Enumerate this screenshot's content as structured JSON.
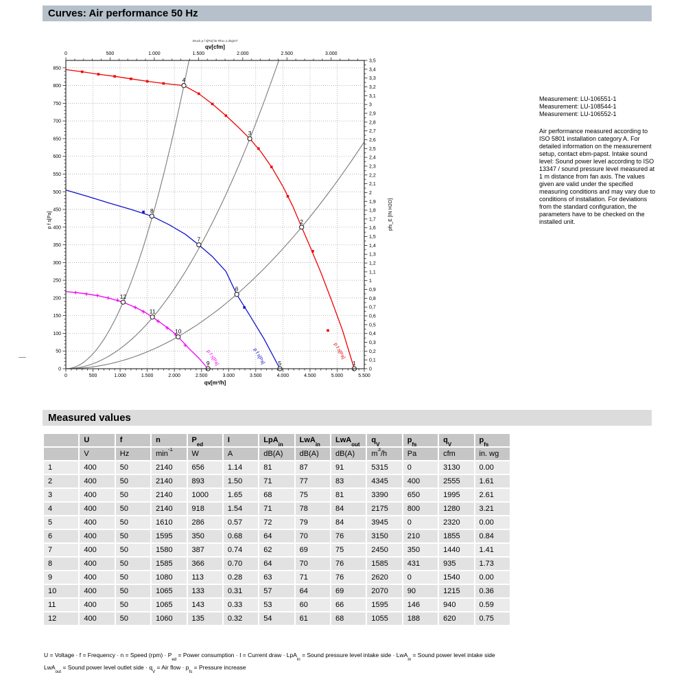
{
  "curves_section": {
    "title": "Curves: Air performance 50 Hz",
    "measurements": [
      "Measurement: LU-106551-1",
      "Measurement: LU-108544-1",
      "Measurement: LU-106552-1"
    ],
    "note": "Air performance measured according to ISO 5801 installation category A. For detailed information on the measurement setup, contact ebm-papst. Intake sound level: Sound power level according to ISO 13347 / sound pressure level measured at 1 m distance from fan axis. The values given are valid under the specified measuring conditions and may vary due to conditions of installation. For deviations from the standard configuration, the parameters have to be checked on the installed unit."
  },
  "chart_data": {
    "type": "line",
    "title": "Druck p f s[Pa] für Rho=1,2kg/m³",
    "grid": true,
    "x_bottom": {
      "label": "qv[m³/h]",
      "min": 0,
      "max": 5500,
      "major": 500,
      "minor": 100,
      "tick_labels": [
        "0",
        "500",
        "1.000",
        "1.500",
        "2.000",
        "2.500",
        "3.000",
        "3.500",
        "4.000",
        "4.500",
        "5.000",
        "5.500"
      ]
    },
    "x_top": {
      "label": "qv[cfm]",
      "values": [
        0,
        500,
        1000,
        1500,
        2000,
        2500,
        3000
      ],
      "tick_labels": [
        "0",
        "500",
        "1.000",
        "1.500",
        "2.000",
        "2.500",
        "3.000"
      ],
      "cfm_to_m3h": 1.63,
      "minor": 100,
      "minor_max": 3300
    },
    "y_left": {
      "label": "p f s[Pa]",
      "min": 0,
      "max": 871,
      "major": 50,
      "minor": 10,
      "tick_labels": [
        "0",
        "50",
        "100",
        "150",
        "200",
        "250",
        "300",
        "350",
        "400",
        "450",
        "500",
        "550",
        "600",
        "650",
        "700",
        "750",
        "800",
        "850"
      ]
    },
    "y_right": {
      "label": "pfs_E [IN H2O]",
      "min": 0,
      "max": 3.5,
      "major": 0.1,
      "minor": 0.05,
      "tick_labels": [
        "0",
        "0,1",
        "0,2",
        "0,3",
        "0,4",
        "0,5",
        "0,6",
        "0,7",
        "0,8",
        "0,9",
        "1",
        "1,1",
        "1,2",
        "1,3",
        "1,4",
        "1,5",
        "1,6",
        "1,7",
        "1,8",
        "1,9",
        "2",
        "2,1",
        "2,2",
        "2,3",
        "2,4",
        "2,5",
        "2,6",
        "2,7",
        "2,8",
        "2,9",
        "3",
        "3,1",
        "3,2",
        "3,3",
        "3,4",
        "3,5"
      ]
    },
    "series": [
      {
        "name": "fan-curve-2140rpm",
        "color": "#f00000",
        "points": [
          [
            0,
            845
          ],
          [
            300,
            839
          ],
          [
            600,
            832
          ],
          [
            900,
            826
          ],
          [
            1200,
            819
          ],
          [
            1500,
            812
          ],
          [
            1800,
            806
          ],
          [
            2175,
            800
          ],
          [
            2450,
            777
          ],
          [
            2700,
            748
          ],
          [
            2950,
            715
          ],
          [
            3180,
            682
          ],
          [
            3390,
            650
          ],
          [
            3600,
            612
          ],
          [
            3800,
            568
          ],
          [
            4000,
            515
          ],
          [
            4180,
            460
          ],
          [
            4345,
            400
          ],
          [
            4520,
            338
          ],
          [
            4700,
            272
          ],
          [
            4900,
            192
          ],
          [
            5100,
            108
          ],
          [
            5315,
            0
          ]
        ],
        "marker": "square",
        "markers": [
          [
            300,
            839
          ],
          [
            600,
            832
          ],
          [
            900,
            826
          ],
          [
            1200,
            819
          ],
          [
            1500,
            812
          ],
          [
            1800,
            806
          ],
          [
            2450,
            777
          ],
          [
            2700,
            748
          ],
          [
            2950,
            715
          ],
          [
            3550,
            622
          ],
          [
            3790,
            570
          ],
          [
            4090,
            487
          ],
          [
            4550,
            332
          ],
          [
            4830,
            108
          ]
        ]
      },
      {
        "name": "fan-curve-1600rpm",
        "color": "#1010d0",
        "points": [
          [
            0,
            505
          ],
          [
            400,
            487
          ],
          [
            800,
            468
          ],
          [
            1200,
            450
          ],
          [
            1585,
            431
          ],
          [
            1900,
            407
          ],
          [
            2200,
            380
          ],
          [
            2450,
            350
          ],
          [
            2700,
            317
          ],
          [
            2950,
            275
          ],
          [
            3150,
            210
          ],
          [
            3400,
            148
          ],
          [
            3650,
            85
          ],
          [
            3945,
            0
          ]
        ],
        "marker": "square",
        "markers": [
          [
            1430,
            443
          ],
          [
            3290,
            173
          ]
        ]
      },
      {
        "name": "fan-curve-1065rpm",
        "color": "#f000f0",
        "points": [
          [
            0,
            218
          ],
          [
            200,
            215
          ],
          [
            400,
            211
          ],
          [
            600,
            206
          ],
          [
            800,
            199
          ],
          [
            1055,
            188
          ],
          [
            1300,
            172
          ],
          [
            1450,
            160
          ],
          [
            1595,
            146
          ],
          [
            1800,
            124
          ],
          [
            1950,
            107
          ],
          [
            2070,
            90
          ],
          [
            2250,
            60
          ],
          [
            2450,
            30
          ],
          [
            2620,
            0
          ]
        ],
        "marker": "plus",
        "markers": [
          [
            180,
            215
          ],
          [
            380,
            211
          ],
          [
            580,
            207
          ],
          [
            780,
            200
          ],
          [
            950,
            194
          ],
          [
            1280,
            173
          ],
          [
            1430,
            161
          ],
          [
            1700,
            134
          ],
          [
            1870,
            115
          ],
          [
            2030,
            95
          ],
          [
            2200,
            66
          ]
        ]
      }
    ],
    "system_curves": [
      {
        "name": "system-curve-A",
        "k": 0.0001691,
        "qmax": 2269
      },
      {
        "name": "system-curve-B",
        "k": 5.656e-05,
        "qmax": 3924
      },
      {
        "name": "system-curve-C",
        "k": 2.119e-05,
        "qmax": 5500
      }
    ],
    "labeled_points": [
      {
        "n": "1",
        "q": 5315,
        "p": 0
      },
      {
        "n": "2",
        "q": 4345,
        "p": 400
      },
      {
        "n": "3",
        "q": 3390,
        "p": 650
      },
      {
        "n": "4",
        "q": 2175,
        "p": 800
      },
      {
        "n": "5",
        "q": 3945,
        "p": 0
      },
      {
        "n": "6",
        "q": 3150,
        "p": 210
      },
      {
        "n": "7",
        "q": 2450,
        "p": 350
      },
      {
        "n": "8",
        "q": 1585,
        "p": 431
      },
      {
        "n": "9",
        "q": 2620,
        "p": 0
      },
      {
        "n": "10",
        "q": 2070,
        "p": 90
      },
      {
        "n": "11",
        "q": 1595,
        "p": 146
      },
      {
        "n": "12",
        "q": 1055,
        "p": 188
      }
    ],
    "curve_labels": [
      {
        "text": "p f s[Pa]",
        "q": 2600,
        "p": 50,
        "angle": 57,
        "color": "#f000f0"
      },
      {
        "text": "p f s[Pa]",
        "q": 3460,
        "p": 55,
        "angle": 60,
        "color": "#1010d0"
      },
      {
        "text": "p f s[Pa]",
        "q": 4940,
        "p": 70,
        "angle": 60,
        "color": "#f00000"
      }
    ]
  },
  "table": {
    "title": "Measured values",
    "columns": [
      [],
      [
        {
          "t": "U"
        }
      ],
      [
        {
          "t": "f"
        }
      ],
      [
        {
          "t": "n"
        }
      ],
      [
        {
          "t": "P"
        },
        {
          "sub": "ed"
        }
      ],
      [
        {
          "t": "I"
        }
      ],
      [
        {
          "t": "LpA"
        },
        {
          "sub": "in"
        }
      ],
      [
        {
          "t": "LwA"
        },
        {
          "sub": "in"
        }
      ],
      [
        {
          "t": "LwA"
        },
        {
          "sub": "out"
        }
      ],
      [
        {
          "t": "q"
        },
        {
          "sub": "V"
        }
      ],
      [
        {
          "t": "p"
        },
        {
          "sub": "fs"
        }
      ],
      [
        {
          "t": "q"
        },
        {
          "sub": "V"
        }
      ],
      [
        {
          "t": "p"
        },
        {
          "sub": "fs"
        }
      ]
    ],
    "units": [
      [],
      [
        {
          "t": "V"
        }
      ],
      [
        {
          "t": "Hz"
        }
      ],
      [
        {
          "t": "min"
        },
        {
          "sup": "-1"
        }
      ],
      [
        {
          "t": "W"
        }
      ],
      [
        {
          "t": "A"
        }
      ],
      [
        {
          "t": "dB(A)"
        }
      ],
      [
        {
          "t": "dB(A)"
        }
      ],
      [
        {
          "t": "dB(A)"
        }
      ],
      [
        {
          "t": "m"
        },
        {
          "sup": "3"
        },
        {
          "t": "/h"
        }
      ],
      [
        {
          "t": "Pa"
        }
      ],
      [
        {
          "t": "cfm"
        }
      ],
      [
        {
          "t": "in. wg"
        }
      ]
    ],
    "rows": [
      [
        "1",
        "400",
        "50",
        "2140",
        "656",
        "1.14",
        "81",
        "87",
        "91",
        "5315",
        "0",
        "3130",
        "0.00"
      ],
      [
        "2",
        "400",
        "50",
        "2140",
        "893",
        "1.50",
        "71",
        "77",
        "83",
        "4345",
        "400",
        "2555",
        "1.61"
      ],
      [
        "3",
        "400",
        "50",
        "2140",
        "1000",
        "1.65",
        "68",
        "75",
        "81",
        "3390",
        "650",
        "1995",
        "2.61"
      ],
      [
        "4",
        "400",
        "50",
        "2140",
        "918",
        "1.54",
        "71",
        "78",
        "84",
        "2175",
        "800",
        "1280",
        "3.21"
      ],
      [
        "5",
        "400",
        "50",
        "1610",
        "286",
        "0.57",
        "72",
        "79",
        "84",
        "3945",
        "0",
        "2320",
        "0.00"
      ],
      [
        "6",
        "400",
        "50",
        "1595",
        "350",
        "0.68",
        "64",
        "70",
        "76",
        "3150",
        "210",
        "1855",
        "0.84"
      ],
      [
        "7",
        "400",
        "50",
        "1580",
        "387",
        "0.74",
        "62",
        "69",
        "75",
        "2450",
        "350",
        "1440",
        "1.41"
      ],
      [
        "8",
        "400",
        "50",
        "1585",
        "366",
        "0.70",
        "64",
        "70",
        "76",
        "1585",
        "431",
        "935",
        "1.73"
      ],
      [
        "9",
        "400",
        "50",
        "1080",
        "113",
        "0.28",
        "63",
        "71",
        "76",
        "2620",
        "0",
        "1540",
        "0.00"
      ],
      [
        "10",
        "400",
        "50",
        "1065",
        "133",
        "0.31",
        "57",
        "64",
        "69",
        "2070",
        "90",
        "1215",
        "0.36"
      ],
      [
        "11",
        "400",
        "50",
        "1065",
        "143",
        "0.33",
        "53",
        "60",
        "66",
        "1595",
        "146",
        "940",
        "0.59"
      ],
      [
        "12",
        "400",
        "50",
        "1060",
        "135",
        "0.32",
        "54",
        "61",
        "68",
        "1055",
        "188",
        "620",
        "0.75"
      ]
    ]
  },
  "footnote": {
    "line1": [
      {
        "t": "U = Voltage · f = Frequency · n = Speed (rpm) · P"
      },
      {
        "sub": "ed"
      },
      {
        "t": " = Power consumption · I = Current draw · LpA"
      },
      {
        "sub": "in"
      },
      {
        "t": " = Sound pressure level intake side · LwA"
      },
      {
        "sub": "in"
      },
      {
        "t": " = Sound power level intake side"
      }
    ],
    "line2": [
      {
        "t": "LwA"
      },
      {
        "sub": "out"
      },
      {
        "t": " = Sound power level outlet side · q"
      },
      {
        "sub": "V"
      },
      {
        "t": " = Air flow · p"
      },
      {
        "sub": "fs"
      },
      {
        "t": " = Pressure increase"
      }
    ]
  }
}
